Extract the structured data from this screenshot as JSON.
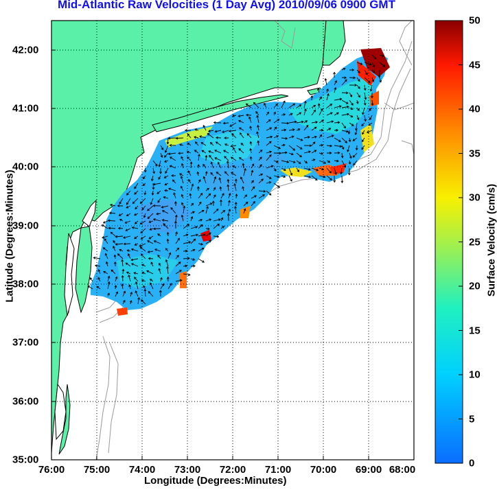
{
  "title": "Mid-Atlantic Raw Velocities (1 Day Avg) 2010/09/06 0900 GMT",
  "axes": {
    "xlabel": "Longitude (Degrees:Minutes)",
    "ylabel": "Latitude (Degrees:Minutes)",
    "x_ticks": [
      "76:00",
      "75:00",
      "74:00",
      "73:00",
      "72:00",
      "71:00",
      "70:00",
      "69:00",
      "68:00"
    ],
    "y_ticks": [
      "42:00",
      "41:00",
      "40:00",
      "39:00",
      "38:00",
      "37:00",
      "36:00",
      "35:00"
    ],
    "x_range": [
      -76,
      -68
    ],
    "y_range": [
      35,
      42.5
    ],
    "grid": "dotted"
  },
  "colorbar": {
    "label": "Surface Velocity (cm/s)",
    "ticks": [
      "50",
      "45",
      "40",
      "35",
      "30",
      "25",
      "20",
      "15",
      "10",
      "5",
      "0"
    ],
    "range": [
      0,
      50
    ],
    "colormap": "jet"
  },
  "colors": {
    "land": "#5af0a8",
    "water": "#ffffff",
    "bathymetry": "#999999",
    "title": "#1010ee"
  }
}
